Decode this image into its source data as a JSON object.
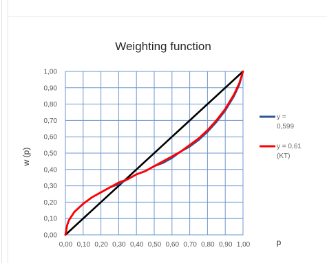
{
  "chart_data": {
    "type": "line",
    "title": "Weighting function",
    "xlabel": "p",
    "ylabel": "w (p)",
    "xlim": [
      0,
      1
    ],
    "ylim": [
      0,
      1
    ],
    "grid": true,
    "legend_position": "right",
    "x_tick_labels": [
      "0,00",
      "0,10",
      "0,20",
      "0,30",
      "0,40",
      "0,50",
      "0,60",
      "0,70",
      "0,80",
      "0,90",
      "1,00"
    ],
    "y_tick_labels": [
      "0,00",
      "0,10",
      "0,20",
      "0,30",
      "0,40",
      "0,50",
      "0,60",
      "0,70",
      "0,80",
      "0,90",
      "1,00"
    ],
    "series": [
      {
        "legend_lines": [
          "y =",
          "0,599"
        ],
        "color": "#2f5597",
        "x": [
          0,
          0.01,
          0.02,
          0.05,
          0.1,
          0.15,
          0.2,
          0.25,
          0.3,
          0.35,
          0.4,
          0.45,
          0.5,
          0.55,
          0.6,
          0.65,
          0.7,
          0.75,
          0.8,
          0.85,
          0.9,
          0.95,
          0.98,
          1.0
        ],
        "y": [
          0,
          0.06,
          0.09,
          0.14,
          0.19,
          0.23,
          0.26,
          0.29,
          0.31,
          0.34,
          0.37,
          0.39,
          0.42,
          0.44,
          0.47,
          0.51,
          0.54,
          0.58,
          0.63,
          0.69,
          0.76,
          0.85,
          0.92,
          1.0
        ]
      },
      {
        "legend_lines": [
          "y = 0,61",
          "(KT)"
        ],
        "color": "#ff0000",
        "x": [
          0,
          0.01,
          0.02,
          0.05,
          0.1,
          0.15,
          0.2,
          0.25,
          0.3,
          0.35,
          0.4,
          0.45,
          0.5,
          0.55,
          0.6,
          0.65,
          0.7,
          0.75,
          0.8,
          0.85,
          0.9,
          0.95,
          0.98,
          1.0
        ],
        "y": [
          0,
          0.06,
          0.09,
          0.14,
          0.19,
          0.23,
          0.26,
          0.29,
          0.32,
          0.34,
          0.37,
          0.39,
          0.42,
          0.45,
          0.48,
          0.51,
          0.55,
          0.59,
          0.64,
          0.7,
          0.77,
          0.86,
          0.93,
          1.0
        ]
      },
      {
        "legend_lines": [],
        "color": "#000000",
        "x": [
          0,
          1
        ],
        "y": [
          0,
          1
        ]
      }
    ]
  }
}
